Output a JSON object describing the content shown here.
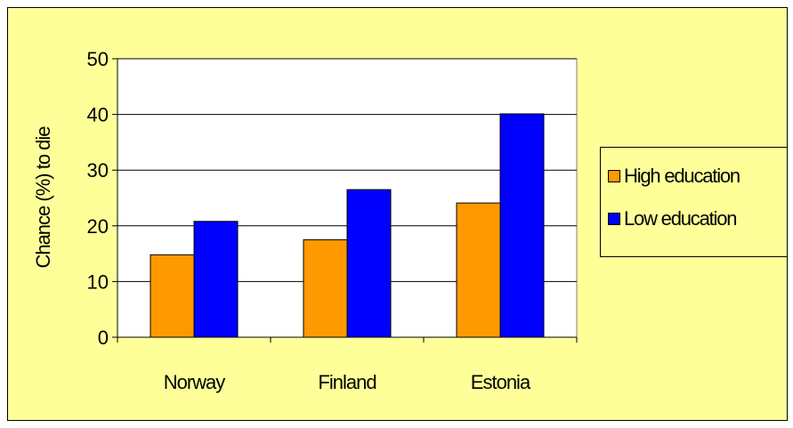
{
  "chart_data": {
    "type": "bar",
    "categories": [
      "Norway",
      "Finland",
      "Estonia"
    ],
    "series": [
      {
        "name": "High education",
        "values": [
          14.8,
          17.5,
          24.1
        ],
        "color": "#ff9900"
      },
      {
        "name": "Low education",
        "values": [
          20.8,
          26.5,
          40.1
        ],
        "color": "#0000ff"
      }
    ],
    "ylabel": "Chance (%) to die",
    "ylim": [
      0,
      50
    ],
    "yticks": [
      0,
      10,
      20,
      30,
      40,
      50
    ],
    "grid": true,
    "legend_position": "right",
    "colors": {
      "background": "#ffff99",
      "plot_area": "#ffffff",
      "axis": "#000000",
      "grid": "#000000"
    }
  }
}
